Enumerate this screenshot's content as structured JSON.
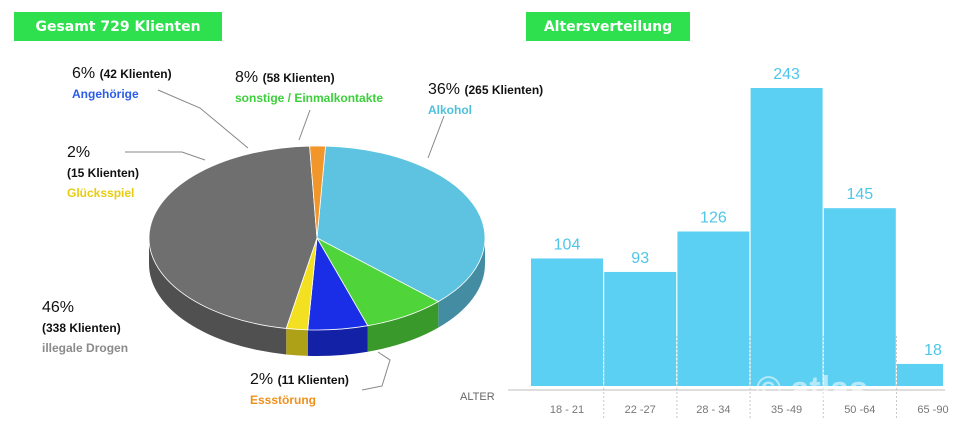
{
  "pie": {
    "title": "Gesamt 729 Klienten",
    "labels": [
      {
        "pct": "36%",
        "count": "(265 Klienten)",
        "name": "Alkohol",
        "color": "#4ec0dc"
      },
      {
        "pct": "8%",
        "count": "(58 Klienten)",
        "name": "sonstige / Einmalkontakte",
        "color": "#3ccf3c"
      },
      {
        "pct": "6%",
        "count": "(42 Klienten)",
        "name": "Angehörige",
        "color": "#2a5ce6"
      },
      {
        "pct": "2%",
        "count": "(15 Klienten)",
        "name": "Glücksspiel",
        "color": "#f0d81e"
      },
      {
        "pct": "46%",
        "count": "(338 Klienten)",
        "name": "illegale Drogen",
        "color": "#8a8a8a"
      },
      {
        "pct": "2%",
        "count": "(11 Klienten)",
        "name": "Essstörung",
        "color": "#f0901c"
      }
    ]
  },
  "bars": {
    "title": "Altersverteilung",
    "axis_label": "ALTER",
    "watermark": "© atlas"
  },
  "chart_data": [
    {
      "type": "pie",
      "title": "Gesamt 729 Klienten",
      "slices": [
        {
          "label": "Alkohol",
          "percent": 36,
          "clients": 265,
          "color": "#5dc3e0"
        },
        {
          "label": "sonstige / Einmalkontakte",
          "percent": 8,
          "clients": 58,
          "color": "#4fd43a"
        },
        {
          "label": "Angehörige",
          "percent": 6,
          "clients": 42,
          "color": "#1a2ee8"
        },
        {
          "label": "Glücksspiel",
          "percent": 2,
          "clients": 15,
          "color": "#f3e020"
        },
        {
          "label": "illegale Drogen",
          "percent": 46,
          "clients": 338,
          "color": "#6f6f6f"
        },
        {
          "label": "Essstörung",
          "percent": 2,
          "clients": 11,
          "color": "#f0962a"
        }
      ]
    },
    {
      "type": "bar",
      "title": "Altersverteilung",
      "xlabel": "ALTER",
      "categories": [
        "18 - 21",
        "22 -27",
        "28 - 34",
        "35 -49",
        "50 -64",
        "65 -90"
      ],
      "values": [
        104,
        93,
        126,
        243,
        145,
        18
      ],
      "ylim": [
        0,
        243
      ],
      "color": "#5bd0f3"
    }
  ]
}
